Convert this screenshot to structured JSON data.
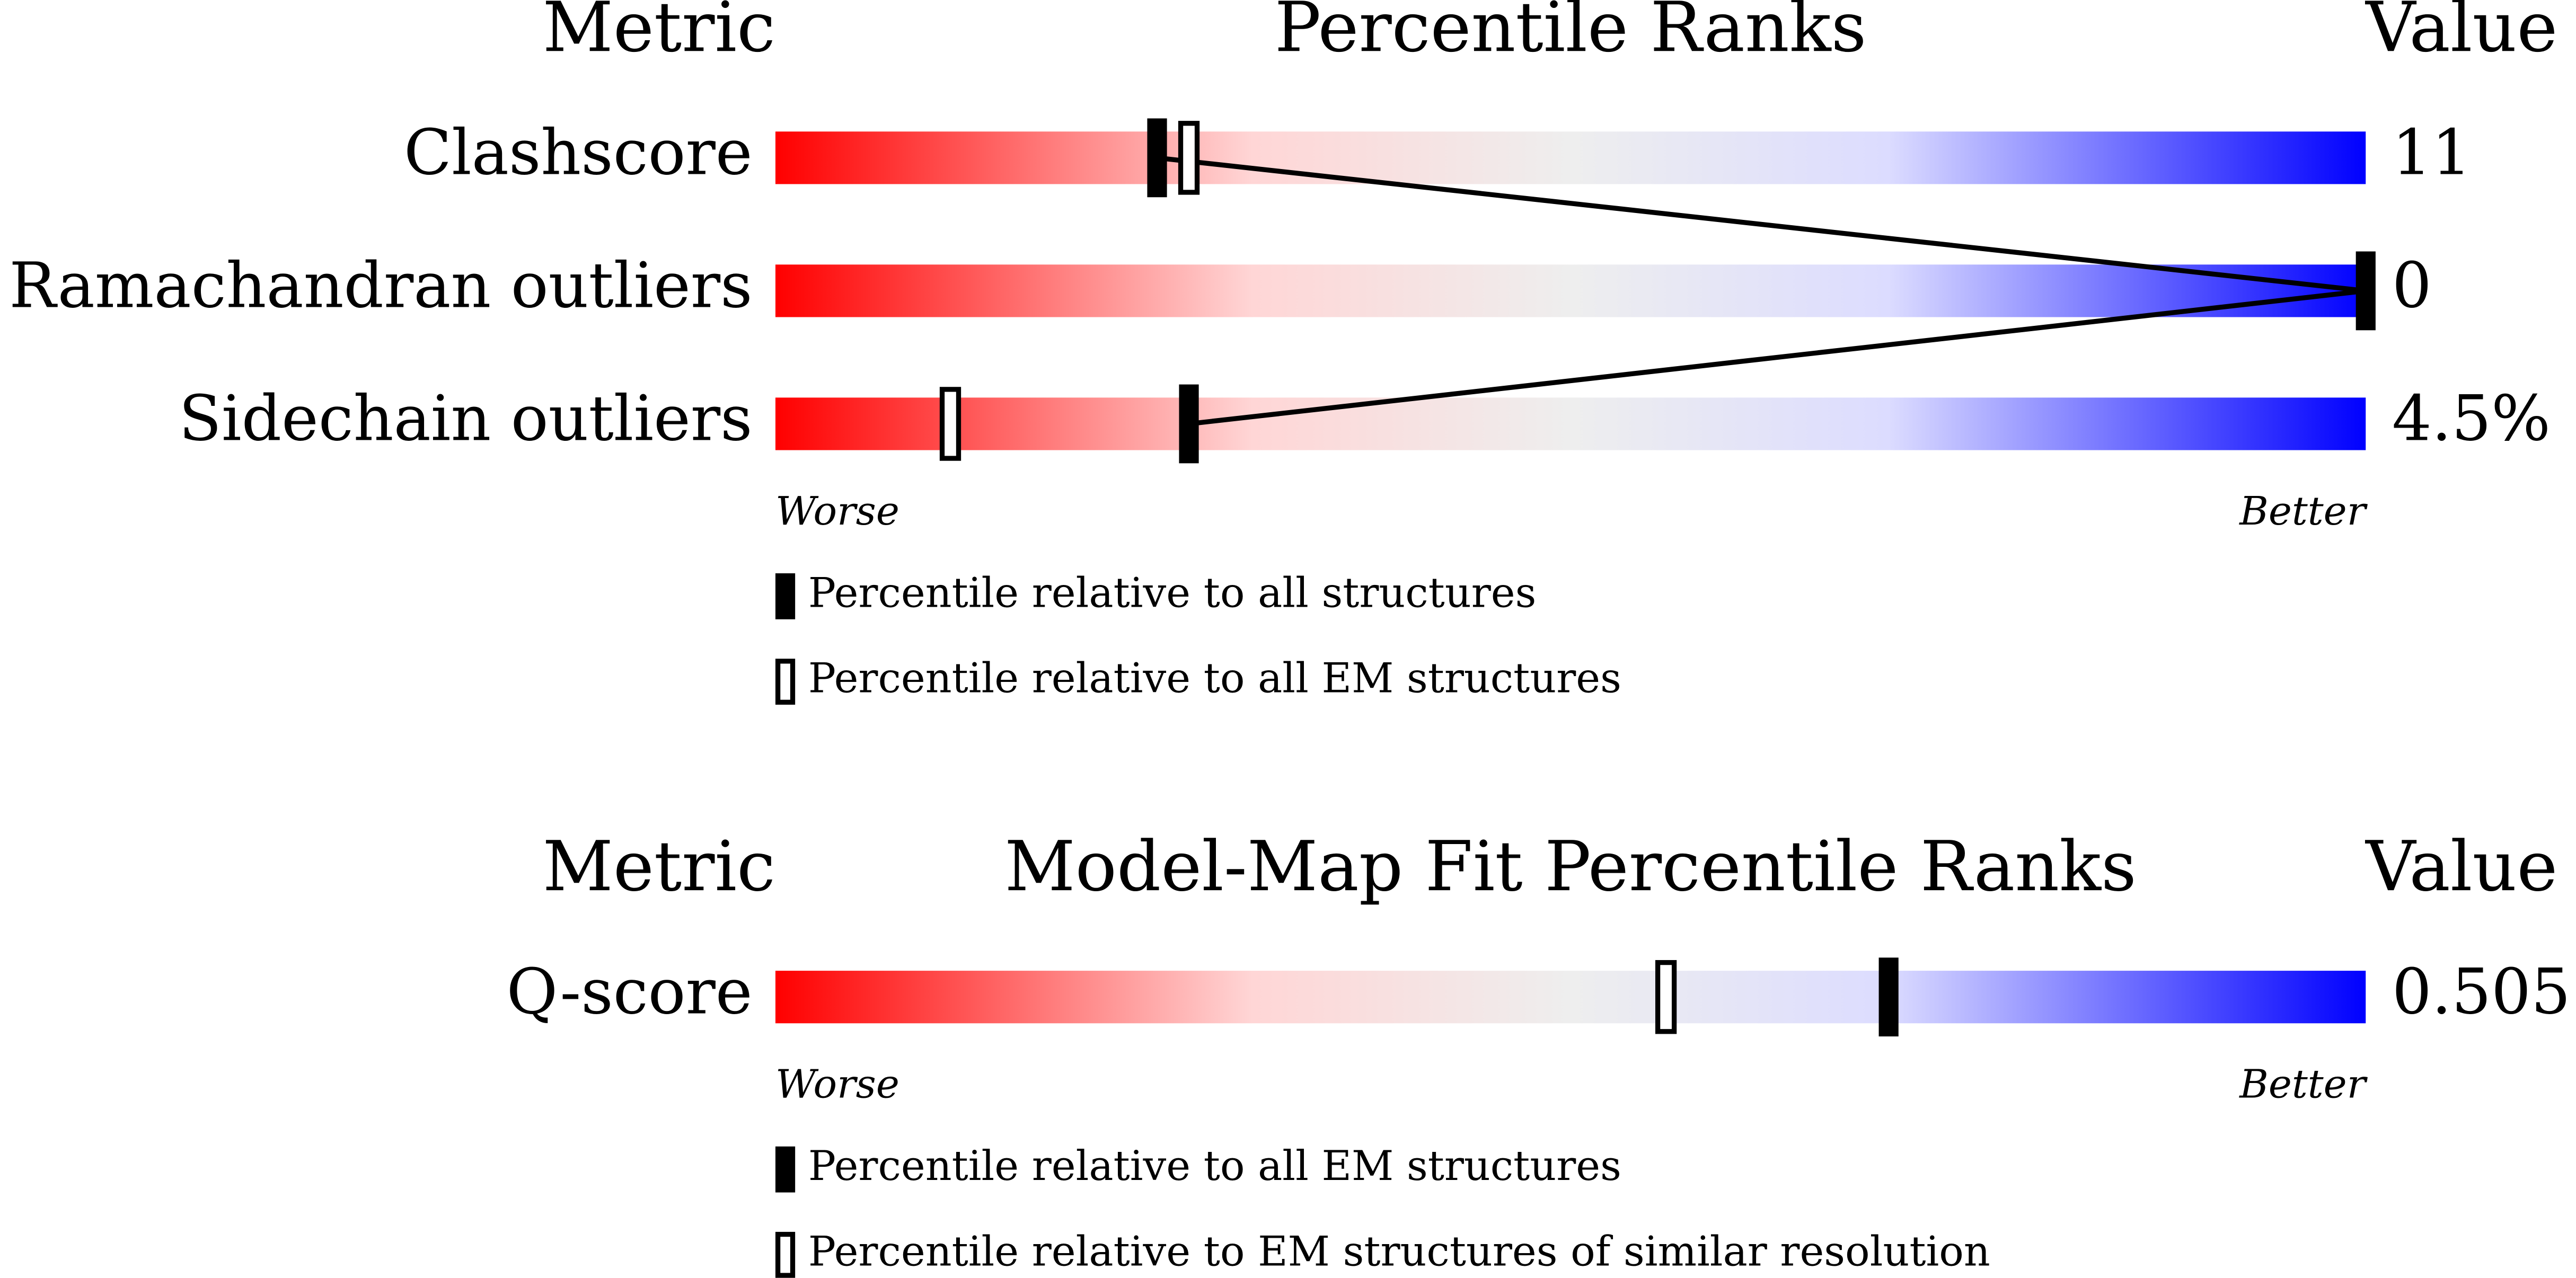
{
  "chart_data": [
    {
      "type": "percentile-slider",
      "title": "Percentile Ranks",
      "metric_header": "Metric",
      "value_header": "Value",
      "categories": [
        "Clashscore",
        "Ramachandran outliers",
        "Sidechain outliers"
      ],
      "metric_values": [
        "11",
        "0",
        "4.5%"
      ],
      "xlim": [
        0,
        100
      ],
      "worse_label": "Worse",
      "better_label": "Better",
      "connect": true,
      "series": [
        {
          "name": "Percentile relative to all structures",
          "style": "filled",
          "color": "#000000",
          "values": [
            24,
            100,
            26
          ]
        },
        {
          "name": "Percentile relative to all EM structures",
          "style": "open",
          "color": "#000000",
          "values": [
            26,
            null,
            11
          ]
        }
      ]
    },
    {
      "type": "percentile-slider",
      "title": "Model-Map Fit Percentile Ranks",
      "metric_header": "Metric",
      "value_header": "Value",
      "categories": [
        "Q-score"
      ],
      "metric_values": [
        "0.505"
      ],
      "xlim": [
        0,
        100
      ],
      "worse_label": "Worse",
      "better_label": "Better",
      "connect": false,
      "series": [
        {
          "name": "Percentile relative to all EM structures",
          "style": "filled",
          "color": "#000000",
          "values": [
            70
          ]
        },
        {
          "name": "Percentile relative to EM structures of similar resolution",
          "style": "open",
          "color": "#000000",
          "values": [
            56
          ]
        }
      ]
    }
  ]
}
